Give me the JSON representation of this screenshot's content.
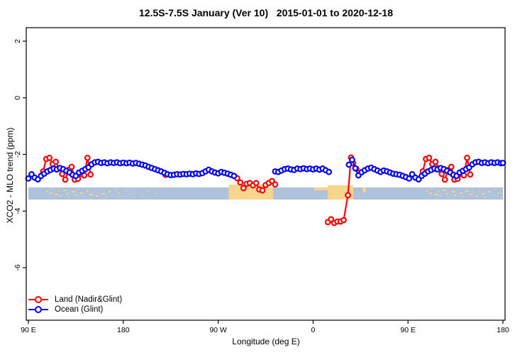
{
  "title": "12.5S-7.5S January (Ver 10)   2015-01-01 to 2020-12-18",
  "legend": {
    "items": [
      {
        "label": "Land (Nadir&Glint)",
        "color": "#FF0000"
      },
      {
        "label": "Ocean (Glint)",
        "color": "#0000FF"
      }
    ]
  },
  "chart_data": {
    "type": "line",
    "title": "12.5S-7.5S January (Ver 10)   2015-01-01 to 2020-12-18",
    "xlabel": "Longitude (deg E)",
    "ylabel": "XCO2 - MLO trend (ppm)",
    "grid": false,
    "legend_position": "bottom-left",
    "x_axis": {
      "range": [
        90,
        540
      ],
      "note": "longitude axis wraps: 90E..180..90W..0..90E..180",
      "ticks": [
        {
          "t": 90,
          "label": "90 E"
        },
        {
          "t": 180,
          "label": "180"
        },
        {
          "t": 270,
          "label": "90 W"
        },
        {
          "t": 360,
          "label": "0"
        },
        {
          "t": 450,
          "label": "90 E"
        },
        {
          "t": 540,
          "label": "180"
        }
      ]
    },
    "y_axis": {
      "range": [
        2.5,
        -7.9
      ],
      "ticks": [
        {
          "v": 2,
          "label": "2"
        },
        {
          "v": 0,
          "label": "0"
        },
        {
          "v": -2,
          "label": "-2"
        },
        {
          "v": -4,
          "label": "-4"
        },
        {
          "v": -6,
          "label": "-6"
        }
      ]
    },
    "series": [
      {
        "name": "Land (Nadir&Glint)",
        "color": "#FF0000",
        "segments": [
          [
            [
              104,
              -2.6
            ],
            [
              107,
              -2.16
            ],
            [
              110,
              -2.12
            ],
            [
              113,
              -2.34
            ],
            [
              116,
              -2.26
            ],
            [
              119,
              -2.49
            ],
            [
              122,
              -2.69
            ],
            [
              125,
              -2.89
            ],
            [
              128,
              -2.55
            ],
            [
              131,
              -2.44
            ],
            [
              134,
              -2.89
            ],
            [
              137,
              -2.86
            ],
            [
              140,
              -2.69
            ],
            [
              143,
              -2.74
            ],
            [
              146,
              -2.12
            ],
            [
              149,
              -2.71
            ]
          ],
          [
            [
              220,
              -2.72
            ]
          ],
          [
            [
              285,
              -2.76
            ],
            [
              288,
              -2.84
            ],
            [
              291,
              -2.99
            ],
            [
              294,
              -3.19
            ],
            [
              297,
              -3.04
            ],
            [
              300,
              -3.01
            ],
            [
              303,
              -3.09
            ],
            [
              306,
              -3.01
            ],
            [
              309,
              -3.24
            ],
            [
              312,
              -3.27
            ],
            [
              315,
              -3.08
            ],
            [
              318,
              -3.01
            ],
            [
              321,
              -2.94
            ],
            [
              324,
              -3.06
            ]
          ],
          [
            [
              374,
              -4.39
            ],
            [
              377,
              -4.29
            ],
            [
              380,
              -4.42
            ],
            [
              383,
              -4.37
            ],
            [
              386,
              -4.37
            ],
            [
              389,
              -4.32
            ],
            [
              393,
              -3.44
            ],
            [
              396,
              -2.11
            ],
            [
              398,
              -2.31
            ],
            [
              401,
              -2.51
            ]
          ],
          [
            [
              464,
              -2.6
            ],
            [
              467,
              -2.16
            ],
            [
              470,
              -2.12
            ],
            [
              473,
              -2.34
            ],
            [
              476,
              -2.26
            ],
            [
              479,
              -2.49
            ],
            [
              482,
              -2.69
            ],
            [
              485,
              -2.89
            ],
            [
              488,
              -2.55
            ],
            [
              491,
              -2.44
            ],
            [
              494,
              -2.89
            ],
            [
              497,
              -2.86
            ],
            [
              500,
              -2.69
            ],
            [
              503,
              -2.74
            ],
            [
              506,
              -2.12
            ],
            [
              509,
              -2.71
            ]
          ]
        ]
      },
      {
        "name": "Ocean (Glint)",
        "color": "#0000FF",
        "segments": [
          [
            [
              90,
              -2.85
            ],
            [
              93,
              -2.7
            ],
            [
              96,
              -2.82
            ],
            [
              99,
              -2.88
            ],
            [
              102,
              -2.76
            ],
            [
              105,
              -2.68
            ],
            [
              108,
              -2.6
            ],
            [
              111,
              -2.55
            ],
            [
              114,
              -2.5
            ],
            [
              117,
              -2.53
            ],
            [
              120,
              -2.48
            ],
            [
              123,
              -2.52
            ],
            [
              126,
              -2.58
            ],
            [
              129,
              -2.64
            ],
            [
              132,
              -2.72
            ],
            [
              135,
              -2.76
            ],
            [
              138,
              -2.64
            ],
            [
              141,
              -2.58
            ],
            [
              144,
              -2.52
            ],
            [
              147,
              -2.46
            ],
            [
              150,
              -2.35
            ],
            [
              153,
              -2.28
            ],
            [
              156,
              -2.26
            ],
            [
              159,
              -2.3
            ],
            [
              162,
              -2.28
            ],
            [
              165,
              -2.31
            ],
            [
              168,
              -2.28
            ],
            [
              171,
              -2.3
            ],
            [
              174,
              -2.28
            ],
            [
              177,
              -2.31
            ],
            [
              180,
              -2.29
            ],
            [
              183,
              -2.31
            ],
            [
              186,
              -2.29
            ],
            [
              189,
              -2.32
            ],
            [
              192,
              -2.3
            ],
            [
              195,
              -2.33
            ],
            [
              198,
              -2.36
            ],
            [
              201,
              -2.39
            ],
            [
              204,
              -2.44
            ],
            [
              207,
              -2.48
            ],
            [
              210,
              -2.52
            ],
            [
              213,
              -2.56
            ],
            [
              216,
              -2.6
            ],
            [
              219,
              -2.65
            ],
            [
              222,
              -2.7
            ],
            [
              225,
              -2.73
            ],
            [
              228,
              -2.72
            ],
            [
              231,
              -2.7
            ],
            [
              234,
              -2.71
            ],
            [
              237,
              -2.69
            ],
            [
              240,
              -2.7
            ],
            [
              243,
              -2.68
            ],
            [
              246,
              -2.7
            ],
            [
              249,
              -2.67
            ],
            [
              252,
              -2.69
            ],
            [
              255,
              -2.66
            ],
            [
              258,
              -2.6
            ],
            [
              261,
              -2.54
            ],
            [
              264,
              -2.6
            ],
            [
              267,
              -2.64
            ],
            [
              270,
              -2.67
            ],
            [
              273,
              -2.62
            ],
            [
              276,
              -2.65
            ],
            [
              279,
              -2.68
            ],
            [
              282,
              -2.72
            ],
            [
              285,
              -2.76
            ]
          ],
          [
            [
              324,
              -2.6
            ],
            [
              327,
              -2.62
            ],
            [
              330,
              -2.57
            ],
            [
              333,
              -2.52
            ],
            [
              336,
              -2.5
            ],
            [
              339,
              -2.53
            ],
            [
              342,
              -2.55
            ],
            [
              345,
              -2.5
            ],
            [
              348,
              -2.52
            ],
            [
              351,
              -2.49
            ],
            [
              354,
              -2.52
            ],
            [
              357,
              -2.5
            ],
            [
              360,
              -2.53
            ],
            [
              363,
              -2.5
            ],
            [
              366,
              -2.54
            ],
            [
              369,
              -2.5
            ],
            [
              372,
              -2.56
            ],
            [
              375,
              -2.62
            ]
          ],
          [
            [
              394,
              -2.36
            ],
            [
              397,
              -2.19
            ],
            [
              400,
              -2.49
            ],
            [
              403,
              -2.74
            ],
            [
              406,
              -2.63
            ],
            [
              409,
              -2.56
            ],
            [
              412,
              -2.5
            ],
            [
              415,
              -2.47
            ],
            [
              418,
              -2.52
            ],
            [
              421,
              -2.57
            ],
            [
              424,
              -2.62
            ],
            [
              427,
              -2.57
            ],
            [
              430,
              -2.6
            ],
            [
              433,
              -2.64
            ],
            [
              436,
              -2.68
            ],
            [
              439,
              -2.7
            ],
            [
              442,
              -2.72
            ],
            [
              445,
              -2.76
            ],
            [
              448,
              -2.8
            ],
            [
              451,
              -2.85
            ],
            [
              454,
              -2.7
            ],
            [
              457,
              -2.82
            ],
            [
              460,
              -2.88
            ],
            [
              463,
              -2.76
            ],
            [
              466,
              -2.68
            ],
            [
              469,
              -2.6
            ],
            [
              472,
              -2.55
            ],
            [
              475,
              -2.5
            ],
            [
              478,
              -2.53
            ],
            [
              481,
              -2.48
            ],
            [
              484,
              -2.52
            ],
            [
              487,
              -2.58
            ],
            [
              490,
              -2.64
            ],
            [
              493,
              -2.72
            ],
            [
              496,
              -2.76
            ],
            [
              499,
              -2.64
            ],
            [
              502,
              -2.58
            ],
            [
              505,
              -2.52
            ],
            [
              508,
              -2.46
            ],
            [
              511,
              -2.35
            ],
            [
              514,
              -2.28
            ],
            [
              517,
              -2.26
            ],
            [
              520,
              -2.3
            ],
            [
              523,
              -2.28
            ],
            [
              526,
              -2.31
            ],
            [
              529,
              -2.28
            ],
            [
              532,
              -2.3
            ],
            [
              535,
              -2.28
            ],
            [
              538,
              -2.31
            ],
            [
              540,
              -2.3
            ]
          ]
        ]
      }
    ],
    "map_band": {
      "description": "latitude-strip map: ocean blue band with tan land patches",
      "ocean_color": "#AEC2DC",
      "land_color": "#F7D58C",
      "land_patches": [
        {
          "t0": 280,
          "t1": 316,
          "dy0": -4,
          "dy1": 17
        },
        {
          "t0": 316,
          "t1": 322,
          "dy0": 0,
          "dy1": 17
        },
        {
          "t0": 361,
          "t1": 374,
          "dy0": 0,
          "dy1": 4
        },
        {
          "t0": 374,
          "t1": 398,
          "dy0": -3,
          "dy1": 17
        },
        {
          "t0": 407,
          "t1": 410,
          "dy0": 0,
          "dy1": 7
        }
      ],
      "speckle_offsets": [
        0,
        360
      ],
      "speckles": [
        [
          107,
          4,
          3,
          2
        ],
        [
          110,
          7,
          4,
          2
        ],
        [
          112,
          2,
          2,
          1
        ],
        [
          115,
          9,
          5,
          2
        ],
        [
          118,
          5,
          3,
          1
        ],
        [
          120,
          11,
          2,
          2
        ],
        [
          123,
          3,
          4,
          2
        ],
        [
          126,
          8,
          3,
          2
        ],
        [
          128,
          13,
          2,
          1
        ],
        [
          131,
          5,
          5,
          2
        ],
        [
          134,
          10,
          3,
          2
        ],
        [
          136,
          2,
          2,
          1
        ],
        [
          139,
          7,
          4,
          2
        ],
        [
          142,
          12,
          2,
          1
        ],
        [
          145,
          4,
          3,
          2
        ],
        [
          148,
          9,
          5,
          2
        ],
        [
          151,
          6,
          2,
          1
        ],
        [
          154,
          11,
          3,
          2
        ],
        [
          157,
          3,
          2,
          1
        ],
        [
          160,
          8,
          4,
          2
        ],
        [
          163,
          13,
          2,
          1
        ],
        [
          166,
          5,
          3,
          2
        ],
        [
          169,
          10,
          2,
          1
        ],
        [
          172,
          2,
          3,
          1
        ],
        [
          175,
          7,
          2,
          2
        ],
        [
          178,
          12,
          2,
          1
        ],
        [
          181,
          4,
          2,
          1
        ],
        [
          186,
          9,
          3,
          1
        ],
        [
          191,
          6,
          2,
          1
        ],
        [
          197,
          11,
          2,
          1
        ],
        [
          203,
          5,
          2,
          1
        ],
        [
          210,
          8,
          2,
          1
        ]
      ]
    }
  }
}
